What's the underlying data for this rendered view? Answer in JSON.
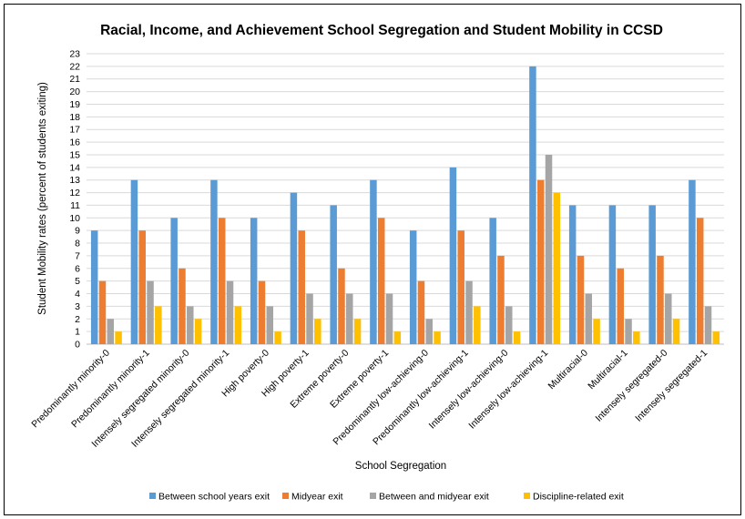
{
  "chart_data": {
    "type": "bar",
    "title": "Racial, Income, and Achievement School Segregation and Student Mobility in CCSD",
    "xlabel": "School Segregation",
    "ylabel": "Student Mobility rates (percent of students exiting)",
    "ylim": [
      0,
      23
    ],
    "y_ticks": [
      "0",
      "1",
      "2",
      "3",
      "4",
      "5",
      "6",
      "7",
      "8",
      "9",
      "10",
      "11",
      "12",
      "13",
      "14",
      "15",
      "16",
      "17",
      "18",
      "19",
      "20",
      "21",
      "22",
      "23"
    ],
    "grid": true,
    "legend_position": "bottom",
    "categories": [
      "Predominantly minority-0",
      "Predominantly minority-1",
      "Intensely segregated minority-0",
      "Intensely segregated minority-1",
      "High poverty-0",
      "High poverty-1",
      "Extreme poverty-0",
      "Extreme poverty-1",
      "Predominantly low-achieving-0",
      "Predominantly low-achieving-1",
      "Intensely low-achieving-0",
      "Intensely low-achieving-1",
      "Multiracial-0",
      "Multiracial-1",
      "Intensely segregated-0",
      "Intensely segregated-1"
    ],
    "series": [
      {
        "name": "Between school years exit",
        "color": "#5B9BD5",
        "values": [
          9,
          13,
          10,
          13,
          10,
          12,
          11,
          13,
          9,
          14,
          10,
          22,
          11,
          11,
          11,
          13
        ]
      },
      {
        "name": "Midyear exit",
        "color": "#ED7D31",
        "values": [
          5,
          9,
          6,
          10,
          5,
          9,
          6,
          10,
          5,
          9,
          7,
          13,
          7,
          6,
          7,
          10
        ]
      },
      {
        "name": "Between and midyear exit",
        "color": "#A5A5A5",
        "values": [
          2,
          5,
          3,
          5,
          3,
          4,
          4,
          4,
          2,
          5,
          3,
          15,
          4,
          2,
          4,
          3
        ]
      },
      {
        "name": "Discipline-related exit",
        "color": "#FFC000",
        "values": [
          1,
          3,
          2,
          3,
          1,
          2,
          2,
          1,
          1,
          3,
          1,
          12,
          2,
          1,
          2,
          1
        ]
      }
    ]
  }
}
